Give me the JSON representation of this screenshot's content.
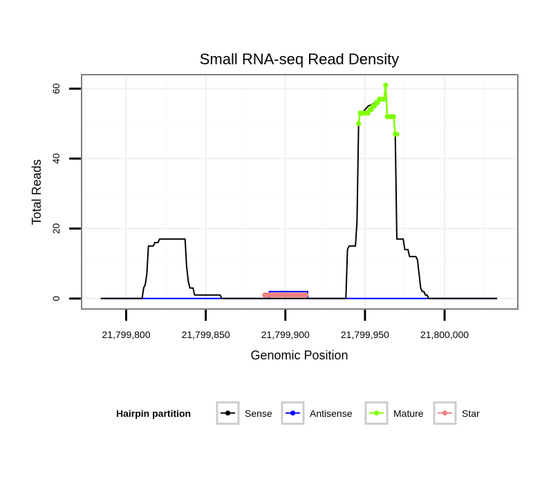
{
  "chart_data": {
    "type": "line",
    "title": "Small RNA-seq Read Density",
    "xlabel": "Genomic Position",
    "ylabel": "Total Reads",
    "xlim": [
      21799772,
      21800046
    ],
    "ylim": [
      -3,
      64
    ],
    "xticks": [
      {
        "value": 21799800,
        "label": "21,799,800"
      },
      {
        "value": 21799850,
        "label": "21,799,850"
      },
      {
        "value": 21799900,
        "label": "21,799,900"
      },
      {
        "value": 21799950,
        "label": "21,799,950"
      },
      {
        "value": 21800000,
        "label": "21,800,000"
      }
    ],
    "yticks": [
      {
        "value": 0,
        "label": "0"
      },
      {
        "value": 20,
        "label": "20"
      },
      {
        "value": 40,
        "label": "40"
      },
      {
        "value": 60,
        "label": "60"
      }
    ],
    "grid": true,
    "legend": {
      "title": "Hairpin partition",
      "position": "bottom",
      "entries": [
        {
          "name": "Sense",
          "color": "#000000"
        },
        {
          "name": "Antisense",
          "color": "#0000ff"
        },
        {
          "name": "Mature",
          "color": "#7fff00"
        },
        {
          "name": "Star",
          "color": "#f08080"
        }
      ]
    },
    "series": [
      {
        "name": "Sense",
        "color": "#000000",
        "markers": false,
        "x": [
          21799784,
          21799810,
          21799811,
          21799812,
          21799813,
          21799814,
          21799817,
          21799818,
          21799820,
          21799821,
          21799822,
          21799823,
          21799824,
          21799825,
          21799826,
          21799836,
          21799837,
          21799838,
          21799839,
          21799840,
          21799841,
          21799842,
          21799843,
          21799859,
          21799860,
          21799938,
          21799939,
          21799940,
          21799941,
          21799942,
          21799943,
          21799944,
          21799945,
          21799946,
          21799947,
          21799948,
          21799952,
          21799962,
          21799963,
          21799964,
          21799968,
          21799969,
          21799970,
          21799972,
          21799974,
          21799975,
          21799977,
          21799978,
          21799980,
          21799982,
          21799983,
          21799984,
          21799985,
          21799986,
          21799987,
          21799988,
          21799989,
          21799990,
          21800033
        ],
        "values": [
          0,
          0,
          3,
          4,
          7,
          15,
          15,
          16,
          16,
          17,
          17,
          17,
          17,
          17,
          17,
          17,
          17,
          9,
          5,
          3,
          3,
          3,
          1,
          1,
          0,
          0,
          14,
          15,
          15,
          15,
          15,
          15,
          22,
          50,
          53,
          53,
          55,
          57,
          61,
          52,
          52,
          47,
          17,
          17,
          17,
          14,
          14,
          12,
          12,
          12,
          11,
          7,
          3,
          2,
          2,
          1,
          1,
          0,
          0
        ]
      },
      {
        "name": "Antisense",
        "color": "#0000ff",
        "markers": false,
        "x": [
          21799784,
          21799890,
          21799890,
          21799914,
          21799914,
          21800033
        ],
        "values": [
          0,
          0,
          2,
          2,
          0,
          0
        ]
      },
      {
        "name": "Mature",
        "color": "#7fff00",
        "markers": true,
        "x": [
          21799946,
          21799947,
          21799948,
          21799949,
          21799950,
          21799951,
          21799952,
          21799953,
          21799954,
          21799955,
          21799956,
          21799957,
          21799958,
          21799959,
          21799960,
          21799961,
          21799962,
          21799963,
          21799964,
          21799965,
          21799966,
          21799967,
          21799968,
          21799969,
          21799970
        ],
        "values": [
          50,
          53,
          53,
          53,
          53,
          53,
          53,
          54,
          54,
          55,
          55,
          56,
          56,
          57,
          57,
          57,
          57,
          61,
          52,
          52,
          52,
          52,
          52,
          47,
          47
        ]
      },
      {
        "name": "Star",
        "color": "#f08080",
        "markers": true,
        "x": [
          21799887,
          21799888,
          21799889,
          21799890,
          21799891,
          21799892,
          21799893,
          21799894,
          21799895,
          21799896,
          21799897,
          21799898,
          21799899,
          21799900,
          21799901,
          21799902,
          21799903,
          21799904,
          21799905,
          21799906,
          21799907,
          21799908,
          21799909,
          21799910,
          21799911,
          21799912,
          21799913
        ],
        "values": [
          1,
          1,
          1,
          1,
          1,
          1,
          1,
          1,
          1,
          1,
          1,
          1,
          1,
          1,
          1,
          1,
          1,
          1,
          1,
          1,
          1,
          1,
          1,
          1,
          1,
          1,
          1
        ]
      }
    ]
  }
}
